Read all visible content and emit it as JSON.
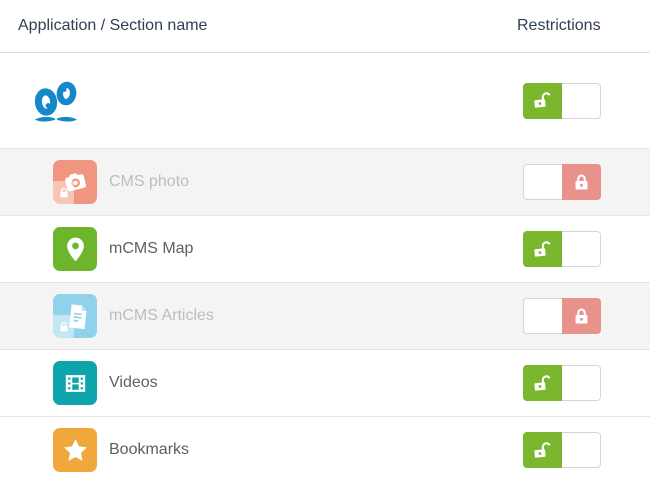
{
  "header": {
    "col_app": "Application / Section name",
    "col_restrictions": "Restrictions"
  },
  "colors": {
    "header_text": "#2e4156",
    "label_enabled": "#606060",
    "label_disabled": "#bdbdbd",
    "row_stripe_bg": "#f4f4f4",
    "toggle_unlocked_green": "#7bb72e",
    "toggle_locked_red": "#e9928b",
    "logo_blue": "#1588c9"
  },
  "rows": [
    {
      "name": "",
      "icon": "goodbarber-logo-icon",
      "icon_color": "#1588c9",
      "locked": false,
      "toggle_state": "unlocked"
    },
    {
      "name": "CMS photo",
      "icon": "camera-icon",
      "icon_color": "#f0957f",
      "locked": true,
      "toggle_state": "locked"
    },
    {
      "name": "mCMS Map",
      "icon": "map-pin-icon",
      "icon_color": "#6db62c",
      "locked": false,
      "toggle_state": "unlocked"
    },
    {
      "name": "mCMS Articles",
      "icon": "article-icon",
      "icon_color": "#90d1ec",
      "locked": true,
      "toggle_state": "locked"
    },
    {
      "name": "Videos",
      "icon": "film-icon",
      "icon_color": "#0fa3ab",
      "locked": false,
      "toggle_state": "unlocked"
    },
    {
      "name": "Bookmarks",
      "icon": "star-icon",
      "icon_color": "#f0a73c",
      "locked": false,
      "toggle_state": "unlocked"
    }
  ]
}
